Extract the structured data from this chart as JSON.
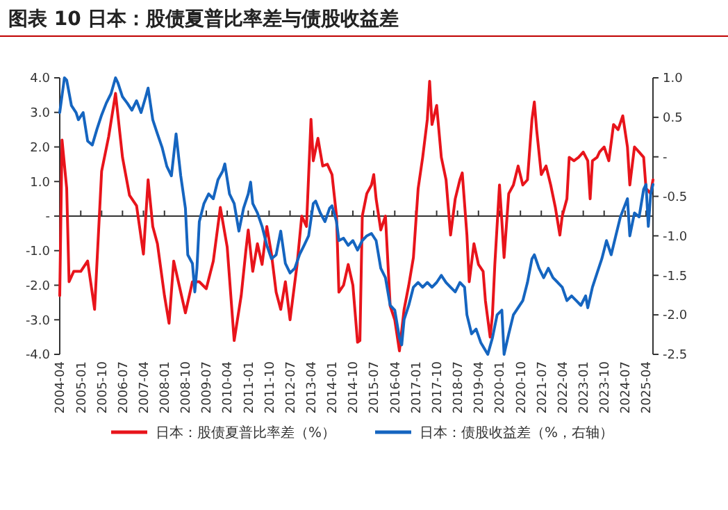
{
  "chart_data": {
    "type": "line",
    "title": "图表 10 日本：股债夏普比率差与债股收益差",
    "legend": "bottom",
    "xlim": [
      "2004-04",
      "2025-07"
    ],
    "xticks": [
      "2004-04",
      "2005-01",
      "2005-10",
      "2006-07",
      "2007-04",
      "2008-01",
      "2008-10",
      "2009-07",
      "2010-04",
      "2011-01",
      "2011-10",
      "2012-07",
      "2013-04",
      "2014-01",
      "2014-10",
      "2015-07",
      "2016-04",
      "2017-01",
      "2017-10",
      "2018-07",
      "2019-04",
      "2020-01",
      "2020-10",
      "2021-07",
      "2022-04",
      "2023-01",
      "2023-10",
      "2024-07",
      "2025-04"
    ],
    "ylim": [
      -4,
      4
    ],
    "yticks": [
      {
        "value": -4,
        "label": "-4.0"
      },
      {
        "value": -3,
        "label": "-3.0"
      },
      {
        "value": -2,
        "label": "-2.0"
      },
      {
        "value": -1,
        "label": "-1.0"
      },
      {
        "value": 0,
        "label": "-"
      },
      {
        "value": 1,
        "label": "1.0"
      },
      {
        "value": 2,
        "label": "2.0"
      },
      {
        "value": 3,
        "label": "3.0"
      },
      {
        "value": 4,
        "label": "4.0"
      }
    ],
    "y2lim": [
      -2.5,
      1
    ],
    "y2ticks": [
      {
        "value": -2.5,
        "label": "-2.5"
      },
      {
        "value": -2,
        "label": "-2.0"
      },
      {
        "value": -1.5,
        "label": "-1.5"
      },
      {
        "value": -1,
        "label": "-1.0"
      },
      {
        "value": -0.5,
        "label": "-0.5"
      },
      {
        "value": 0,
        "label": "-"
      },
      {
        "value": 0.5,
        "label": "0.5"
      },
      {
        "value": 1,
        "label": "1.0"
      }
    ],
    "series": [
      {
        "name": "日本：股债夏普比率差（%）",
        "color": "#e8141b",
        "x": [
          "2004-04",
          "2004-05",
          "2004-07",
          "2004-08",
          "2004-10",
          "2005-01",
          "2005-04",
          "2005-07",
          "2005-10",
          "2006-01",
          "2006-04",
          "2006-07",
          "2006-10",
          "2007-01",
          "2007-04",
          "2007-06",
          "2007-08",
          "2007-10",
          "2008-01",
          "2008-03",
          "2008-05",
          "2008-07",
          "2008-10",
          "2009-01",
          "2009-04",
          "2009-07",
          "2009-10",
          "2010-01",
          "2010-04",
          "2010-07",
          "2010-10",
          "2010-12",
          "2011-01",
          "2011-03",
          "2011-05",
          "2011-07",
          "2011-09",
          "2011-11",
          "2012-01",
          "2012-03",
          "2012-05",
          "2012-07",
          "2012-10",
          "2012-12",
          "2013-02",
          "2013-04",
          "2013-05",
          "2013-07",
          "2013-09",
          "2013-11",
          "2014-01",
          "2014-03",
          "2014-04",
          "2014-06",
          "2014-08",
          "2014-10",
          "2014-12",
          "2015-01",
          "2015-02",
          "2015-04",
          "2015-06",
          "2015-07",
          "2015-08",
          "2015-10",
          "2015-12",
          "2016-02",
          "2016-04",
          "2016-06",
          "2016-08",
          "2016-10",
          "2016-12",
          "2017-02",
          "2017-04",
          "2017-06",
          "2017-07",
          "2017-08",
          "2017-10",
          "2017-12",
          "2018-02",
          "2018-04",
          "2018-06",
          "2018-08",
          "2018-09",
          "2018-11",
          "2018-12",
          "2019-02",
          "2019-04",
          "2019-06",
          "2019-07",
          "2019-09",
          "2019-10",
          "2019-11",
          "2020-01",
          "2020-02",
          "2020-03",
          "2020-05",
          "2020-07",
          "2020-09",
          "2020-11",
          "2021-01",
          "2021-03",
          "2021-04",
          "2021-05",
          "2021-07",
          "2021-09",
          "2021-11",
          "2022-01",
          "2022-03",
          "2022-04",
          "2022-06",
          "2022-07",
          "2022-09",
          "2022-11",
          "2023-01",
          "2023-03",
          "2023-04",
          "2023-05",
          "2023-07",
          "2023-08",
          "2023-10",
          "2023-12",
          "2024-02",
          "2024-04",
          "2024-06",
          "2024-08",
          "2024-09",
          "2024-11",
          "2025-01",
          "2025-03",
          "2025-04",
          "2025-06",
          "2025-07"
        ],
        "values": [
          -2.3,
          2.2,
          0.8,
          -1.9,
          -1.6,
          -1.6,
          -1.3,
          -2.7,
          1.3,
          2.3,
          3.55,
          1.7,
          0.6,
          0.3,
          -1.1,
          1.05,
          -0.3,
          -0.8,
          -2.3,
          -3.1,
          -1.3,
          -1.9,
          -2.8,
          -1.9,
          -1.9,
          -2.1,
          -1.3,
          0.25,
          -0.9,
          -3.6,
          -2.3,
          -1.0,
          -0.4,
          -1.6,
          -0.8,
          -1.4,
          -0.3,
          -1.1,
          -2.2,
          -2.7,
          -1.9,
          -3.0,
          -1.4,
          0,
          -0.3,
          2.8,
          1.6,
          2.25,
          1.45,
          1.5,
          1.2,
          0,
          -2.2,
          -2.0,
          -1.4,
          -2.0,
          -3.65,
          -3.6,
          0,
          0.65,
          0.9,
          1.2,
          0.5,
          -0.4,
          0,
          -2.6,
          -3.0,
          -3.9,
          -2.7,
          -2.0,
          -1.2,
          0.8,
          1.7,
          2.8,
          3.9,
          2.65,
          3.2,
          1.7,
          1.05,
          -0.55,
          0.5,
          1.05,
          1.25,
          -0.55,
          -1.9,
          -0.8,
          -1.4,
          -1.6,
          -2.45,
          -3.5,
          -2.85,
          -1.4,
          0.9,
          -0.15,
          -1.2,
          0.65,
          0.9,
          1.45,
          0.9,
          1.05,
          2.8,
          3.3,
          2.5,
          1.2,
          1.45,
          0.9,
          0.25,
          -0.55,
          0,
          0.5,
          1.7,
          1.6,
          1.7,
          1.85,
          1.6,
          0.5,
          1.6,
          1.7,
          1.85,
          2.0,
          1.6,
          2.65,
          2.5,
          2.9,
          2.0,
          0.9,
          2.0,
          1.85,
          1.7,
          0.8,
          0.65,
          1.05
        ]
      },
      {
        "name": "日本：债股收益差（%，右轴）",
        "color": "#1565c0",
        "axis": "y2",
        "x": [
          "2004-04",
          "2004-06",
          "2004-07",
          "2004-09",
          "2004-11",
          "2004-12",
          "2005-02",
          "2005-04",
          "2005-06",
          "2005-08",
          "2005-10",
          "2005-12",
          "2006-02",
          "2006-04",
          "2006-05",
          "2006-07",
          "2006-09",
          "2006-11",
          "2007-01",
          "2007-03",
          "2007-05",
          "2007-06",
          "2007-08",
          "2007-10",
          "2007-12",
          "2008-02",
          "2008-04",
          "2008-06",
          "2008-08",
          "2008-10",
          "2008-11",
          "2009-01",
          "2009-02",
          "2009-03",
          "2009-04",
          "2009-06",
          "2009-08",
          "2009-10",
          "2009-12",
          "2010-02",
          "2010-03",
          "2010-05",
          "2010-07",
          "2010-09",
          "2010-11",
          "2011-01",
          "2011-02",
          "2011-03",
          "2011-05",
          "2011-07",
          "2011-09",
          "2011-11",
          "2012-01",
          "2012-03",
          "2012-05",
          "2012-07",
          "2012-09",
          "2012-11",
          "2013-01",
          "2013-03",
          "2013-05",
          "2013-06",
          "2013-08",
          "2013-10",
          "2013-12",
          "2014-01",
          "2014-03",
          "2014-04",
          "2014-06",
          "2014-08",
          "2014-10",
          "2014-12",
          "2015-02",
          "2015-04",
          "2015-06",
          "2015-08",
          "2015-10",
          "2015-12",
          "2016-02",
          "2016-04",
          "2016-06",
          "2016-07",
          "2016-08",
          "2016-10",
          "2016-12",
          "2017-02",
          "2017-04",
          "2017-06",
          "2017-08",
          "2017-10",
          "2017-12",
          "2018-02",
          "2018-04",
          "2018-06",
          "2018-08",
          "2018-10",
          "2018-11",
          "2019-01",
          "2019-03",
          "2019-05",
          "2019-08",
          "2019-10",
          "2019-12",
          "2020-02",
          "2020-03",
          "2020-05",
          "2020-07",
          "2020-09",
          "2020-11",
          "2021-01",
          "2021-03",
          "2021-04",
          "2021-06",
          "2021-08",
          "2021-10",
          "2021-12",
          "2022-02",
          "2022-04",
          "2022-06",
          "2022-08",
          "2022-10",
          "2022-12",
          "2023-02",
          "2023-03",
          "2023-05",
          "2023-07",
          "2023-09",
          "2023-11",
          "2024-01",
          "2024-03",
          "2024-05",
          "2024-08",
          "2024-09",
          "2024-11",
          "2025-01",
          "2025-03",
          "2025-04",
          "2025-05",
          "2025-06",
          "2025-07"
        ],
        "values": [
          0.56,
          1.0,
          0.97,
          0.65,
          0.56,
          0.47,
          0.56,
          0.2,
          0.15,
          0.35,
          0.53,
          0.68,
          0.8,
          1.0,
          0.94,
          0.76,
          0.68,
          0.59,
          0.71,
          0.56,
          0.76,
          0.87,
          0.47,
          0.29,
          0.12,
          -0.12,
          -0.24,
          0.29,
          -0.24,
          -0.65,
          -1.24,
          -1.35,
          -1.71,
          -1.41,
          -0.82,
          -0.59,
          -0.47,
          -0.53,
          -0.29,
          -0.18,
          -0.09,
          -0.47,
          -0.59,
          -0.94,
          -0.65,
          -0.47,
          -0.32,
          -0.59,
          -0.71,
          -0.88,
          -1.12,
          -1.29,
          -1.24,
          -0.94,
          -1.35,
          -1.47,
          -1.41,
          -1.24,
          -1.12,
          -1.0,
          -0.59,
          -0.56,
          -0.71,
          -0.82,
          -0.65,
          -0.62,
          -0.82,
          -1.06,
          -1.03,
          -1.12,
          -1.06,
          -1.18,
          -1.06,
          -1.0,
          -0.97,
          -1.06,
          -1.41,
          -1.53,
          -1.88,
          -1.94,
          -2.29,
          -2.38,
          -2.06,
          -1.88,
          -1.65,
          -1.59,
          -1.65,
          -1.59,
          -1.65,
          -1.59,
          -1.5,
          -1.59,
          -1.65,
          -1.71,
          -1.59,
          -1.65,
          -2.0,
          -2.24,
          -2.18,
          -2.35,
          -2.5,
          -2.29,
          -2.0,
          -1.94,
          -2.5,
          -2.24,
          -2.0,
          -1.91,
          -1.82,
          -1.59,
          -1.29,
          -1.24,
          -1.41,
          -1.53,
          -1.41,
          -1.53,
          -1.59,
          -1.65,
          -1.82,
          -1.76,
          -1.82,
          -1.88,
          -1.76,
          -1.91,
          -1.65,
          -1.47,
          -1.29,
          -1.06,
          -1.24,
          -1.0,
          -0.76,
          -0.53,
          -1.0,
          -0.71,
          -0.76,
          -0.41,
          -0.35,
          -0.88,
          -0.47,
          -0.35
        ]
      }
    ]
  }
}
